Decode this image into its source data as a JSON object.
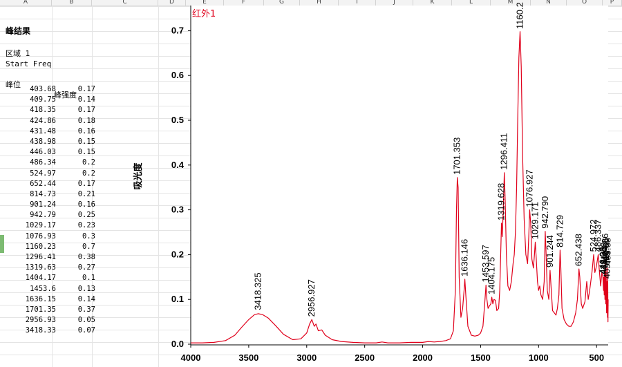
{
  "sheet": {
    "columns": [
      "A",
      "B",
      "C",
      "D",
      "E",
      "F",
      "G",
      "H",
      "I",
      "J",
      "K",
      "L",
      "M",
      "N",
      "O",
      "P"
    ]
  },
  "panel": {
    "title": "峰结果",
    "region": "区域 1",
    "start_freq": "Start Freq",
    "col_position": "峰位",
    "col_intensity": "峰强度",
    "rows": [
      {
        "pos": "403.68",
        "int": "0.17"
      },
      {
        "pos": "409.75",
        "int": "0.14"
      },
      {
        "pos": "418.35",
        "int": "0.17"
      },
      {
        "pos": "424.86",
        "int": "0.18"
      },
      {
        "pos": "431.48",
        "int": "0.16"
      },
      {
        "pos": "438.98",
        "int": "0.15"
      },
      {
        "pos": "446.03",
        "int": "0.15"
      },
      {
        "pos": "486.34",
        "int": "0.2"
      },
      {
        "pos": "524.97",
        "int": "0.2"
      },
      {
        "pos": "652.44",
        "int": "0.17"
      },
      {
        "pos": "814.73",
        "int": "0.21"
      },
      {
        "pos": "901.24",
        "int": "0.16"
      },
      {
        "pos": "942.79",
        "int": "0.25"
      },
      {
        "pos": "1029.17",
        "int": "0.23"
      },
      {
        "pos": "1076.93",
        "int": "0.3"
      },
      {
        "pos": "1160.23",
        "int": "0.7"
      },
      {
        "pos": "1296.41",
        "int": "0.38"
      },
      {
        "pos": "1319.63",
        "int": "0.27"
      },
      {
        "pos": "1404.17",
        "int": "0.1"
      },
      {
        "pos": "1453.6",
        "int": "0.13"
      },
      {
        "pos": "1636.15",
        "int": "0.14"
      },
      {
        "pos": "1701.35",
        "int": "0.37"
      },
      {
        "pos": "2956.93",
        "int": "0.05"
      },
      {
        "pos": "3418.33",
        "int": "0.07"
      }
    ]
  },
  "chart_data": {
    "type": "line",
    "series_label": "红外1",
    "ylabel": "吸光度",
    "xlim": [
      4000,
      400
    ],
    "ylim": [
      0,
      0.75
    ],
    "x_ticks": [
      4000,
      3500,
      3000,
      2500,
      2000,
      1500,
      1000,
      500
    ],
    "x_tick_labels": [
      "4000",
      "3500",
      "3000",
      "2500",
      "2000",
      "1500",
      "1000",
      "500"
    ],
    "y_ticks": [
      0.0,
      0.1,
      0.2,
      0.3,
      0.4,
      0.5,
      0.6,
      0.7
    ],
    "y_tick_labels": [
      "0.0",
      "0.1",
      "0.2",
      "0.3",
      "0.4",
      "0.5",
      "0.6",
      "0.7"
    ],
    "line_color": "#e0001b",
    "spectrum": [
      [
        4000,
        0.003
      ],
      [
        3900,
        0.003
      ],
      [
        3800,
        0.004
      ],
      [
        3700,
        0.008
      ],
      [
        3620,
        0.02
      ],
      [
        3560,
        0.038
      ],
      [
        3500,
        0.055
      ],
      [
        3450,
        0.066
      ],
      [
        3418,
        0.068
      ],
      [
        3380,
        0.066
      ],
      [
        3330,
        0.058
      ],
      [
        3270,
        0.042
      ],
      [
        3200,
        0.022
      ],
      [
        3120,
        0.01
      ],
      [
        3050,
        0.012
      ],
      [
        3000,
        0.025
      ],
      [
        2975,
        0.045
      ],
      [
        2956,
        0.055
      ],
      [
        2935,
        0.04
      ],
      [
        2920,
        0.045
      ],
      [
        2900,
        0.03
      ],
      [
        2870,
        0.032
      ],
      [
        2840,
        0.02
      ],
      [
        2780,
        0.01
      ],
      [
        2700,
        0.006
      ],
      [
        2600,
        0.004
      ],
      [
        2500,
        0.003
      ],
      [
        2400,
        0.003
      ],
      [
        2350,
        0.005
      ],
      [
        2300,
        0.003
      ],
      [
        2200,
        0.003
      ],
      [
        2100,
        0.004
      ],
      [
        2000,
        0.004
      ],
      [
        1950,
        0.006
      ],
      [
        1900,
        0.005
      ],
      [
        1850,
        0.006
      ],
      [
        1800,
        0.008
      ],
      [
        1760,
        0.012
      ],
      [
        1735,
        0.03
      ],
      [
        1718,
        0.12
      ],
      [
        1708,
        0.3
      ],
      [
        1701,
        0.372
      ],
      [
        1694,
        0.35
      ],
      [
        1685,
        0.15
      ],
      [
        1670,
        0.06
      ],
      [
        1655,
        0.08
      ],
      [
        1643,
        0.12
      ],
      [
        1636,
        0.145
      ],
      [
        1628,
        0.11
      ],
      [
        1610,
        0.04
      ],
      [
        1580,
        0.02
      ],
      [
        1550,
        0.018
      ],
      [
        1520,
        0.02
      ],
      [
        1500,
        0.025
      ],
      [
        1480,
        0.04
      ],
      [
        1465,
        0.09
      ],
      [
        1454,
        0.132
      ],
      [
        1446,
        0.1
      ],
      [
        1436,
        0.08
      ],
      [
        1425,
        0.085
      ],
      [
        1412,
        0.09
      ],
      [
        1404,
        0.105
      ],
      [
        1395,
        0.09
      ],
      [
        1385,
        0.1
      ],
      [
        1372,
        0.098
      ],
      [
        1360,
        0.075
      ],
      [
        1345,
        0.08
      ],
      [
        1335,
        0.12
      ],
      [
        1325,
        0.22
      ],
      [
        1320,
        0.27
      ],
      [
        1314,
        0.24
      ],
      [
        1305,
        0.3
      ],
      [
        1296,
        0.383
      ],
      [
        1288,
        0.32
      ],
      [
        1278,
        0.2
      ],
      [
        1265,
        0.13
      ],
      [
        1250,
        0.12
      ],
      [
        1235,
        0.14
      ],
      [
        1220,
        0.18
      ],
      [
        1210,
        0.2
      ],
      [
        1200,
        0.25
      ],
      [
        1190,
        0.35
      ],
      [
        1180,
        0.5
      ],
      [
        1170,
        0.64
      ],
      [
        1160,
        0.698
      ],
      [
        1150,
        0.62
      ],
      [
        1138,
        0.42
      ],
      [
        1125,
        0.28
      ],
      [
        1110,
        0.2
      ],
      [
        1095,
        0.18
      ],
      [
        1085,
        0.24
      ],
      [
        1077,
        0.3
      ],
      [
        1068,
        0.27
      ],
      [
        1058,
        0.19
      ],
      [
        1045,
        0.17
      ],
      [
        1036,
        0.2
      ],
      [
        1029,
        0.228
      ],
      [
        1022,
        0.2
      ],
      [
        1010,
        0.14
      ],
      [
        1000,
        0.12
      ],
      [
        990,
        0.13
      ],
      [
        980,
        0.11
      ],
      [
        965,
        0.1
      ],
      [
        952,
        0.14
      ],
      [
        943,
        0.252
      ],
      [
        935,
        0.2
      ],
      [
        925,
        0.12
      ],
      [
        912,
        0.1
      ],
      [
        901,
        0.165
      ],
      [
        893,
        0.13
      ],
      [
        880,
        0.075
      ],
      [
        865,
        0.07
      ],
      [
        850,
        0.065
      ],
      [
        838,
        0.08
      ],
      [
        825,
        0.11
      ],
      [
        815,
        0.21
      ],
      [
        808,
        0.17
      ],
      [
        798,
        0.08
      ],
      [
        780,
        0.055
      ],
      [
        760,
        0.045
      ],
      [
        740,
        0.04
      ],
      [
        720,
        0.04
      ],
      [
        700,
        0.05
      ],
      [
        680,
        0.07
      ],
      [
        665,
        0.1
      ],
      [
        652,
        0.168
      ],
      [
        645,
        0.15
      ],
      [
        632,
        0.09
      ],
      [
        620,
        0.08
      ],
      [
        600,
        0.095
      ],
      [
        585,
        0.14
      ],
      [
        572,
        0.1
      ],
      [
        560,
        0.12
      ],
      [
        540,
        0.16
      ],
      [
        525,
        0.2
      ],
      [
        515,
        0.16
      ],
      [
        505,
        0.17
      ],
      [
        495,
        0.185
      ],
      [
        486,
        0.2
      ],
      [
        478,
        0.17
      ],
      [
        465,
        0.13
      ],
      [
        455,
        0.16
      ],
      [
        446,
        0.15
      ],
      [
        440,
        0.12
      ],
      [
        439,
        0.15
      ],
      [
        434,
        0.11
      ],
      [
        431,
        0.16
      ],
      [
        428,
        0.1
      ],
      [
        425,
        0.18
      ],
      [
        421,
        0.09
      ],
      [
        418,
        0.17
      ],
      [
        414,
        0.07
      ],
      [
        410,
        0.14
      ],
      [
        406,
        0.06
      ],
      [
        404,
        0.17
      ],
      [
        402,
        0.05
      ],
      [
        400,
        0.1
      ]
    ],
    "peak_labels": [
      {
        "x": 3418.325,
        "y": 0.07,
        "text": "3418.325"
      },
      {
        "x": 2956.927,
        "y": 0.055,
        "text": "2956.927"
      },
      {
        "x": 1701.353,
        "y": 0.372,
        "text": "1701.353"
      },
      {
        "x": 1636.146,
        "y": 0.145,
        "text": "1636.146"
      },
      {
        "x": 1453.597,
        "y": 0.132,
        "text": "1453.597"
      },
      {
        "x": 1404.175,
        "y": 0.105,
        "text": "1404.175"
      },
      {
        "x": 1319.628,
        "y": 0.27,
        "text": "1319.628"
      },
      {
        "x": 1296.411,
        "y": 0.383,
        "text": "1296.411"
      },
      {
        "x": 1160.229,
        "y": 0.698,
        "text": "1160.2"
      },
      {
        "x": 1076.927,
        "y": 0.3,
        "text": "1076.927"
      },
      {
        "x": 1029.171,
        "y": 0.228,
        "text": "1029.171"
      },
      {
        "x": 942.79,
        "y": 0.252,
        "text": "942.790"
      },
      {
        "x": 901.244,
        "y": 0.165,
        "text": "901.244"
      },
      {
        "x": 814.729,
        "y": 0.21,
        "text": "814.729"
      },
      {
        "x": 652.438,
        "y": 0.168,
        "text": "652.438"
      },
      {
        "x": 524.972,
        "y": 0.2,
        "text": "524.972"
      },
      {
        "x": 486.337,
        "y": 0.2,
        "text": "486.337"
      },
      {
        "x": 446.03,
        "y": 0.15,
        "text": "446.03"
      },
      {
        "x": 438.98,
        "y": 0.15,
        "text": "438.98"
      },
      {
        "x": 431.48,
        "y": 0.16,
        "text": "431.48"
      },
      {
        "x": 424.86,
        "y": 0.18,
        "text": "424.86"
      },
      {
        "x": 418.35,
        "y": 0.17,
        "text": "418.35"
      },
      {
        "x": 409.75,
        "y": 0.14,
        "text": "409.75"
      },
      {
        "x": 403.68,
        "y": 0.17,
        "text": "403.68"
      }
    ]
  }
}
